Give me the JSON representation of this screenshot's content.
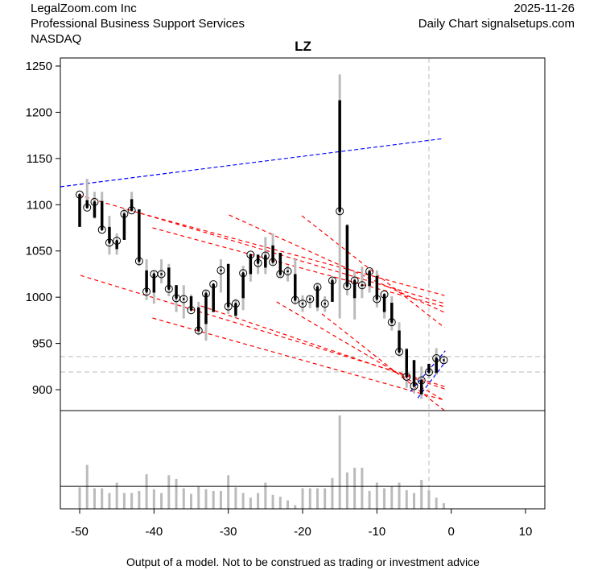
{
  "header": {
    "company": "LegalZoom.com Inc",
    "industry": "Professional Business Support Services",
    "exchange": "NASDAQ",
    "date": "2025-11-26",
    "source": "Daily Chart signalsetups.com"
  },
  "footer": "Output of a model. Not to be construed as trading or investment advice",
  "chart_data": {
    "type": "candlestick",
    "title": "LZ",
    "xlim": [
      -52.6,
      12.6
    ],
    "ylim": [
      877.4,
      1258.7
    ],
    "x_ticks": [
      -50,
      -40,
      -30,
      -20,
      -10,
      0,
      10
    ],
    "y_ticks": [
      900,
      950,
      1000,
      1050,
      1100,
      1150,
      1200,
      1250
    ],
    "colors": {
      "bar": "#000000",
      "range": "#bbbbbb",
      "resistance": "#ff0000",
      "trend": "#0000ff",
      "guide": "#bbbbbb"
    },
    "ohlc_fields": [
      "x",
      "open",
      "high",
      "low",
      "close"
    ],
    "ohlc": [
      [
        -50,
        1076,
        1111,
        1076,
        1111
      ],
      [
        -49,
        1105,
        1128,
        1097,
        1097
      ],
      [
        -48,
        1086,
        1114,
        1085,
        1103
      ],
      [
        -47,
        1104,
        1114,
        1073,
        1073
      ],
      [
        -46,
        1076,
        1088,
        1046,
        1059
      ],
      [
        -45,
        1052,
        1069,
        1046,
        1061
      ],
      [
        -44,
        1062,
        1096,
        1062,
        1090
      ],
      [
        -43,
        1106,
        1114,
        1093,
        1094
      ],
      [
        -42,
        1095,
        1095,
        1034,
        1039
      ],
      [
        -41,
        1029,
        1041,
        997,
        1006
      ],
      [
        -40,
        1005,
        1029,
        993,
        1025
      ],
      [
        -39,
        1025,
        1041,
        1015,
        1025
      ],
      [
        -38,
        1032,
        1036,
        1001,
        1009
      ],
      [
        -37,
        1013,
        1013,
        984,
        999
      ],
      [
        -36,
        998,
        1013,
        977,
        998
      ],
      [
        -35,
        1001,
        1003,
        986,
        986
      ],
      [
        -34,
        989,
        995,
        959,
        964
      ],
      [
        -33,
        971,
        1008,
        953,
        1004
      ],
      [
        -32,
        984,
        1015,
        984,
        1014
      ],
      [
        -31,
        1029,
        1041,
        1005,
        1029
      ],
      [
        -30,
        1036,
        1036,
        982,
        990
      ],
      [
        -29,
        980,
        998,
        978,
        993
      ],
      [
        -28,
        999,
        1034,
        986,
        1026
      ],
      [
        -27,
        1025,
        1046,
        1017,
        1046
      ],
      [
        -26,
        1046,
        1046,
        1025,
        1037
      ],
      [
        -25,
        1032,
        1065,
        1025,
        1045
      ],
      [
        -24,
        1056,
        1069,
        1034,
        1038
      ],
      [
        -23,
        1048,
        1048,
        1021,
        1025
      ],
      [
        -22,
        1028,
        1034,
        1017,
        1028
      ],
      [
        -21,
        1025,
        1041,
        992,
        997
      ],
      [
        -20,
        993,
        1002,
        984,
        993
      ],
      [
        -19,
        998,
        1001,
        988,
        998
      ],
      [
        -18,
        989,
        1015,
        985,
        1011
      ],
      [
        -17,
        993,
        1001,
        984,
        993
      ],
      [
        -16,
        995,
        1021,
        995,
        1018
      ],
      [
        -15,
        1213,
        1241,
        977,
        1093
      ],
      [
        -14,
        1078,
        1079,
        1002,
        1012
      ],
      [
        -13,
        999,
        1028,
        976,
        1018
      ],
      [
        -12,
        1012,
        1033,
        999,
        1013
      ],
      [
        -11,
        1012,
        1030,
        1005,
        1028
      ],
      [
        -10,
        1023,
        1029,
        989,
        998
      ],
      [
        -9,
        984,
        1003,
        977,
        1003
      ],
      [
        -8,
        994,
        1001,
        964,
        973
      ],
      [
        -7,
        964,
        973,
        937,
        941
      ],
      [
        -6,
        944,
        945,
        902,
        914
      ],
      [
        -5,
        932,
        932,
        896,
        904
      ],
      [
        -4,
        895,
        925,
        890,
        910
      ],
      [
        -3,
        928,
        928,
        912,
        919
      ],
      [
        -2,
        918,
        945,
        916,
        934
      ],
      [
        -1,
        932,
        937,
        928,
        932
      ]
    ],
    "volume_relative": [
      23,
      47,
      22,
      22,
      17,
      28,
      17,
      17,
      19,
      37,
      21,
      17,
      36,
      32,
      22,
      16,
      24,
      21,
      19,
      19,
      36,
      23,
      17,
      12,
      17,
      28,
      15,
      13,
      9,
      4,
      22,
      22,
      22,
      22,
      33,
      100,
      39,
      44,
      44,
      19,
      28,
      22,
      24,
      28,
      20,
      17,
      31,
      20,
      12,
      6
    ],
    "volume_reference": 24,
    "trend_lines": [
      {
        "color": "#0000ff",
        "from": [
          -52.6,
          1119.4
        ],
        "to": [
          -1,
          1171.6
        ]
      },
      {
        "color": "#0000ff",
        "from": [
          -5.5,
          898
        ],
        "to": [
          -0.8,
          942
        ]
      },
      {
        "color": "#0000ff",
        "from": [
          -4.5,
          891
        ],
        "to": [
          -0.8,
          930
        ]
      }
    ],
    "resistance_lines": [
      {
        "from": [
          -41.8,
          1090.7
        ],
        "to": [
          -0.9,
          1001.9
        ]
      },
      {
        "from": [
          -40.2,
          1075.0
        ],
        "to": [
          -0.9,
          989.7
        ]
      },
      {
        "from": [
          -50.2,
          1110.7
        ],
        "to": [
          -0.9,
          993.2
        ]
      },
      {
        "from": [
          -29.9,
          1088.9
        ],
        "to": [
          -0.9,
          983.6
        ]
      },
      {
        "from": [
          -20.1,
          1088.1
        ],
        "to": [
          -0.9,
          967.1
        ]
      },
      {
        "from": [
          -49.9,
          1023.6
        ],
        "to": [
          -0.9,
          903.5
        ]
      },
      {
        "from": [
          -40.2,
          977.5
        ],
        "to": [
          -0.9,
          888.7
        ]
      },
      {
        "from": [
          -33.7,
          990.6
        ],
        "to": [
          -0.9,
          900.9
        ]
      },
      {
        "from": [
          -17.4,
          982.0
        ],
        "to": [
          -0.9,
          877.4
        ]
      },
      {
        "from": [
          -23.5,
          995.0
        ],
        "to": [
          -0.9,
          888.0
        ]
      }
    ],
    "guides": {
      "h": [
        935.8,
        919.2
      ],
      "v": [
        -3
      ]
    }
  }
}
